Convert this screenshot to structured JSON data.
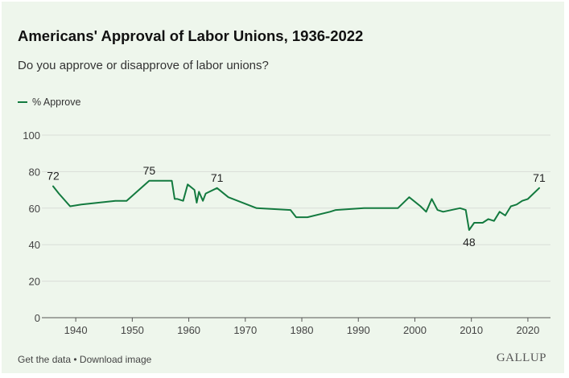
{
  "title": "Americans' Approval of Labor Unions, 1936-2022",
  "subtitle": "Do you approve or disapprove of labor unions?",
  "legend": {
    "series_label": "% Approve"
  },
  "footer": {
    "get_data": "Get the data",
    "separator": " • ",
    "download": "Download image"
  },
  "brand": "GALLUP",
  "colors": {
    "line": "#137a3f",
    "background": "#eef6ec",
    "grid": "#d9ddd8"
  },
  "chart_data": {
    "type": "line",
    "title": "Americans' Approval of Labor Unions, 1936-2022",
    "subtitle": "Do you approve or disapprove of labor unions?",
    "xlabel": "",
    "ylabel": "",
    "xlim": [
      1934,
      2024
    ],
    "ylim": [
      0,
      100
    ],
    "x_ticks": [
      1940,
      1950,
      1960,
      1970,
      1980,
      1990,
      2000,
      2010,
      2020
    ],
    "y_ticks": [
      0,
      20,
      40,
      60,
      80,
      100
    ],
    "grid": true,
    "legend_position": "top-left",
    "series": [
      {
        "name": "% Approve",
        "points": [
          [
            1936,
            72
          ],
          [
            1937,
            68
          ],
          [
            1939,
            61
          ],
          [
            1941,
            62
          ],
          [
            1947,
            64
          ],
          [
            1949,
            64
          ],
          [
            1953,
            75
          ],
          [
            1957,
            75
          ],
          [
            1957.5,
            65
          ],
          [
            1958,
            65
          ],
          [
            1959,
            64
          ],
          [
            1959.8,
            73
          ],
          [
            1961,
            70
          ],
          [
            1961.4,
            63
          ],
          [
            1961.8,
            69
          ],
          [
            1962.5,
            64
          ],
          [
            1963,
            68
          ],
          [
            1965,
            71
          ],
          [
            1967,
            66
          ],
          [
            1972,
            60
          ],
          [
            1978,
            59
          ],
          [
            1979,
            55
          ],
          [
            1981,
            55
          ],
          [
            1985,
            58
          ],
          [
            1986,
            59
          ],
          [
            1991,
            60
          ],
          [
            1997,
            60
          ],
          [
            1999,
            66
          ],
          [
            2001,
            61
          ],
          [
            2002,
            58
          ],
          [
            2003,
            65
          ],
          [
            2004,
            59
          ],
          [
            2005,
            58
          ],
          [
            2008,
            60
          ],
          [
            2009,
            59
          ],
          [
            2009.6,
            48
          ],
          [
            2010.5,
            52
          ],
          [
            2012,
            52
          ],
          [
            2013,
            54
          ],
          [
            2014,
            53
          ],
          [
            2015,
            58
          ],
          [
            2016,
            56
          ],
          [
            2017,
            61
          ],
          [
            2018,
            62
          ],
          [
            2019,
            64
          ],
          [
            2020,
            65
          ],
          [
            2021,
            68
          ],
          [
            2022,
            71
          ]
        ]
      }
    ],
    "annotations": [
      {
        "x": 1936,
        "y": 72,
        "text": "72",
        "placement": "above"
      },
      {
        "x": 1953,
        "y": 75,
        "text": "75",
        "placement": "above"
      },
      {
        "x": 1965,
        "y": 71,
        "text": "71",
        "placement": "above"
      },
      {
        "x": 2009.6,
        "y": 48,
        "text": "48",
        "placement": "below"
      },
      {
        "x": 2022,
        "y": 71,
        "text": "71",
        "placement": "above"
      }
    ]
  }
}
